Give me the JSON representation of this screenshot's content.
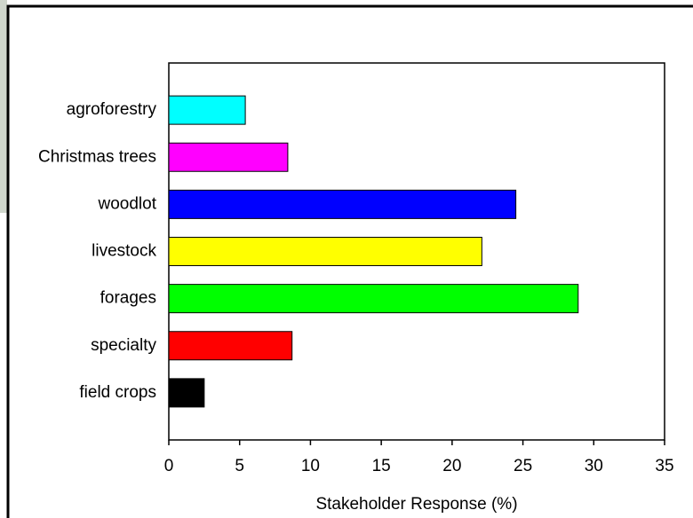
{
  "chart_data": {
    "type": "bar",
    "orientation": "horizontal",
    "x_label": "Stakeholder Response (%)",
    "categories": [
      "agroforestry",
      "Christmas trees",
      "woodlot",
      "livestock",
      "forages",
      "specialty",
      "field crops"
    ],
    "values": [
      5.4,
      8.4,
      24.5,
      22.1,
      28.9,
      8.7,
      2.5
    ],
    "colors": [
      "#00ffff",
      "#ff00ff",
      "#0000ff",
      "#ffff00",
      "#00ff00",
      "#ff0000",
      "#000000"
    ],
    "xlim": [
      0,
      35
    ],
    "xticks": [
      0,
      5,
      10,
      15,
      20,
      25,
      30,
      35
    ]
  }
}
